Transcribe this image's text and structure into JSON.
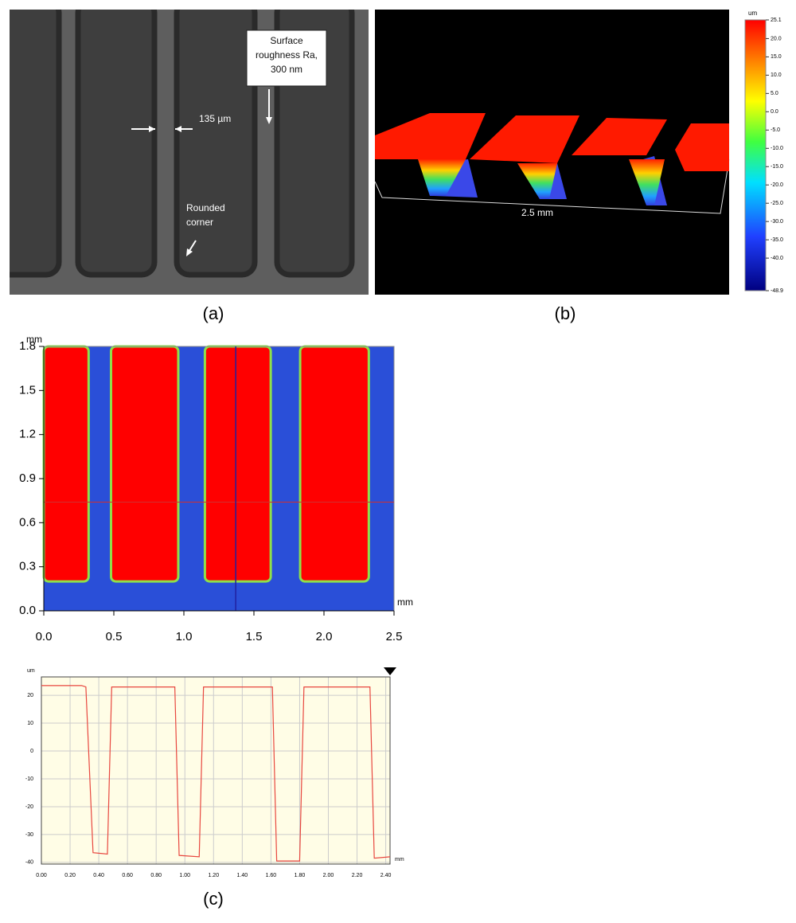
{
  "panels": [
    {
      "label": "(a)",
      "annotations": {
        "roughness": [
          "Surface",
          "roughness Ra,",
          "300 nm"
        ],
        "width": "135 µm",
        "corner": [
          "Rounded",
          "corner"
        ]
      }
    },
    {
      "label": "(b)",
      "scale_label": "2.5 mm",
      "colorbar": {
        "unit": "um",
        "lim": [
          25.1,
          -48.9
        ],
        "ticks": [
          25.1,
          {
            "value": 20,
            "label": "20.0"
          },
          {
            "value": 15,
            "label": "15.0"
          },
          {
            "value": 10,
            "label": "10.0"
          },
          {
            "value": 5,
            "label": "5.0"
          },
          {
            "value": 0,
            "label": "0.0"
          },
          {
            "value": -5,
            "label": "-5.0"
          },
          {
            "value": -10,
            "label": "-10.0"
          },
          {
            "value": -15,
            "label": "-15.0"
          },
          {
            "value": -20,
            "label": "-20.0"
          },
          {
            "value": -25,
            "label": "-25.0"
          },
          {
            "value": -30,
            "label": "-30.0"
          },
          {
            "value": -35,
            "label": "-35.0"
          },
          {
            "value": -40,
            "label": "-40.0"
          },
          -48.9
        ]
      }
    },
    {
      "label": "(c)"
    }
  ],
  "chart_data": [
    {
      "type": "heatmap",
      "xlabel": "mm",
      "ylabel": "mm",
      "xlim": [
        0,
        2.5
      ],
      "ylim": [
        0,
        1.8
      ],
      "xticks": [
        {
          "value": 0,
          "label": "0.0"
        },
        0.5,
        {
          "value": 1,
          "label": "1.0"
        },
        1.5,
        {
          "value": 2,
          "label": "2.0"
        },
        2.5
      ],
      "yticks": [
        {
          "value": 0,
          "label": "0.0"
        },
        0.3,
        0.6,
        0.9,
        1.2,
        1.5,
        1.8
      ],
      "high_regions": {
        "x_ranges": [
          [
            0,
            0.32
          ],
          [
            0.48,
            0.96
          ],
          [
            1.15,
            1.62
          ],
          [
            1.83,
            2.32
          ]
        ],
        "y_bottom": 0.2
      },
      "profile_y": 0.74,
      "profile_x": 1.37,
      "colors": {
        "high": "#ff0000",
        "low": "#2a4fd8",
        "edge": "#8ee04a",
        "profile_y": "#d03030",
        "profile_x": "#2020a0"
      }
    },
    {
      "type": "line",
      "xlabel": "mm",
      "ylabel": "um",
      "xlim": [
        0,
        2.43
      ],
      "ylim": [
        -40.6,
        26.6
      ],
      "xticks": [
        {
          "value": 0,
          "label": "0.00"
        },
        {
          "value": 0.2,
          "label": "0.20"
        },
        {
          "value": 0.4,
          "label": "0.40"
        },
        {
          "value": 0.6,
          "label": "0.60"
        },
        {
          "value": 0.8,
          "label": "0.80"
        },
        {
          "value": 1,
          "label": "1.00"
        },
        {
          "value": 1.2,
          "label": "1.20"
        },
        {
          "value": 1.4,
          "label": "1.40"
        },
        {
          "value": 1.6,
          "label": "1.60"
        },
        {
          "value": 1.8,
          "label": "1.80"
        },
        {
          "value": 2,
          "label": "2.00"
        },
        {
          "value": 2.2,
          "label": "2.20"
        },
        {
          "value": 2.4,
          "label": "2.40"
        }
      ],
      "yticks": [
        20,
        10,
        0,
        -10,
        -20,
        -30,
        -40
      ],
      "grid": true,
      "background": "#fffde6",
      "series": [
        {
          "color": "#e8473f",
          "x": [
            0,
            0.28,
            0.31,
            0.36,
            0.46,
            0.49,
            0.93,
            0.96,
            1.1,
            1.13,
            1.61,
            1.64,
            1.8,
            1.83,
            2.29,
            2.32,
            2.43
          ],
          "values": [
            23.5,
            23.5,
            23,
            -36.5,
            -37,
            23,
            23,
            -37.5,
            -38,
            23,
            23,
            -39.5,
            -39.5,
            23,
            23,
            -38.5,
            -38
          ]
        }
      ]
    }
  ]
}
